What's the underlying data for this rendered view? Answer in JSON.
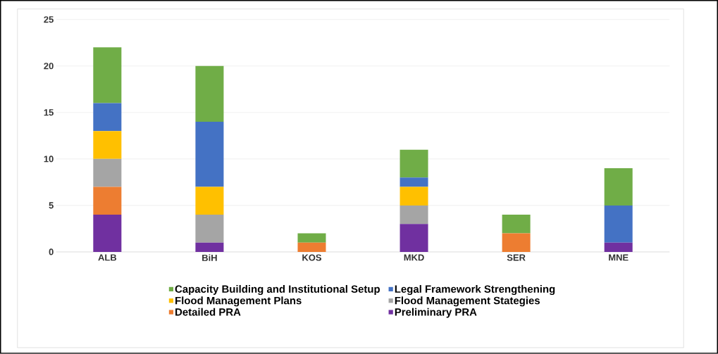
{
  "chart_data": {
    "type": "bar",
    "stacked": true,
    "categories": [
      "ALB",
      "BiH",
      "KOS",
      "MKD",
      "SER",
      "MNE"
    ],
    "series": [
      {
        "name": "Preliminary PRA",
        "color": "#7030a0",
        "values": [
          4,
          1,
          0,
          3,
          0,
          1
        ]
      },
      {
        "name": "Detailed PRA",
        "color": "#ed7d31",
        "values": [
          3,
          0,
          1,
          0,
          2,
          0
        ]
      },
      {
        "name": "Flood Management Stategies",
        "color": "#a5a5a5",
        "values": [
          3,
          3,
          0,
          2,
          0,
          0
        ]
      },
      {
        "name": "Flood Management Plans",
        "color": "#ffc000",
        "values": [
          3,
          3,
          0,
          2,
          0,
          0
        ]
      },
      {
        "name": "Legal Framework Strengthening",
        "color": "#4472c4",
        "values": [
          3,
          7,
          0,
          1,
          0,
          4
        ]
      },
      {
        "name": "Capacity Building and Institutional Setup",
        "color": "#70ad47",
        "values": [
          6,
          6,
          1,
          3,
          2,
          4
        ]
      }
    ],
    "ylim": [
      0,
      25
    ],
    "yticks": [
      0,
      5,
      10,
      15,
      20,
      25
    ],
    "grid": "y",
    "legend": "bottom"
  }
}
